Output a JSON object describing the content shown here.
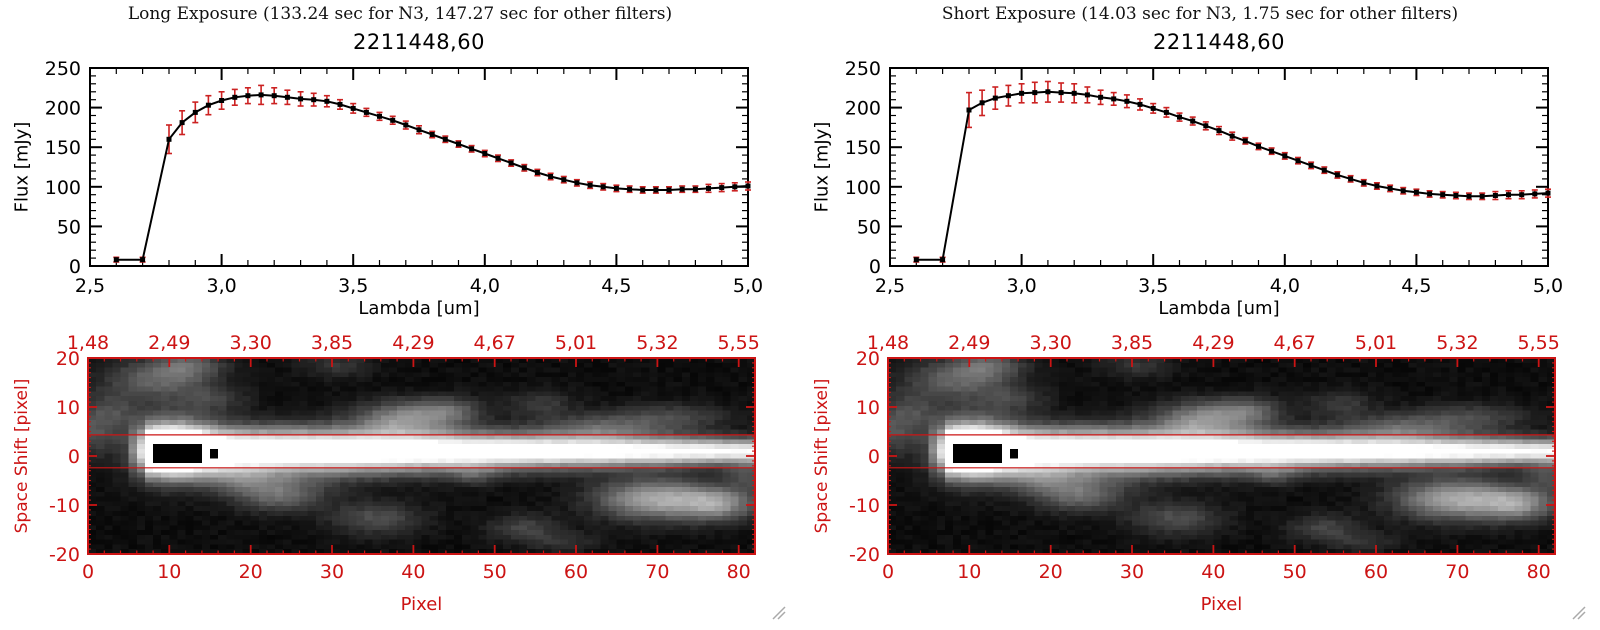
{
  "colors": {
    "axis_red": "#cc1414",
    "error_red": "#cc2222",
    "line_black": "#000000",
    "background": "#ffffff",
    "grip_gray": "#aaaaaa"
  },
  "panels": [
    {
      "title": "Long Exposure (133.24 sec for N3, 147.27 sec for other filters)",
      "spectrum_chart": 0,
      "image_chart": 2
    },
    {
      "title": "Short Exposure (14.03 sec for N3, 1.75 sec for other filters)",
      "spectrum_chart": 1,
      "image_chart": 3
    }
  ],
  "chart_data": [
    {
      "type": "line",
      "panel": "long-exposure",
      "title": "2211448,60",
      "xlabel": "Lambda [um]",
      "ylabel": "Flux [mJy]",
      "xlim": [
        2.5,
        5.0
      ],
      "ylim": [
        0,
        250
      ],
      "x_ticks": [
        2.5,
        3.0,
        3.5,
        4.0,
        4.5,
        5.0
      ],
      "x_tick_labels": [
        "2,5",
        "3,0",
        "3,5",
        "4,0",
        "4,5",
        "5,0"
      ],
      "y_ticks": [
        0,
        50,
        100,
        150,
        200,
        250
      ],
      "y_tick_labels": [
        "0",
        "50",
        "100",
        "150",
        "200",
        "250"
      ],
      "marker": "filled-square",
      "x": [
        2.6,
        2.7,
        2.8,
        2.85,
        2.9,
        2.95,
        3.0,
        3.05,
        3.1,
        3.15,
        3.2,
        3.25,
        3.3,
        3.35,
        3.4,
        3.45,
        3.5,
        3.55,
        3.6,
        3.65,
        3.7,
        3.75,
        3.8,
        3.85,
        3.9,
        3.95,
        4.0,
        4.05,
        4.1,
        4.15,
        4.2,
        4.25,
        4.3,
        4.35,
        4.4,
        4.45,
        4.5,
        4.55,
        4.6,
        4.65,
        4.7,
        4.75,
        4.8,
        4.85,
        4.9,
        4.95,
        5.0
      ],
      "y": [
        8,
        8,
        160,
        181,
        194,
        203,
        209,
        213,
        215,
        216,
        215,
        213,
        211,
        210,
        208,
        204,
        199,
        194,
        189,
        184,
        178,
        172,
        166,
        160,
        154,
        148,
        142,
        136,
        130,
        124,
        118,
        113,
        109,
        105,
        102,
        100,
        98,
        97,
        96,
        96,
        96,
        97,
        97,
        98,
        99,
        100,
        101
      ],
      "yerr": [
        3,
        3,
        18,
        15,
        13,
        12,
        11,
        10,
        10,
        12,
        10,
        9,
        9,
        8,
        7,
        6,
        6,
        5,
        5,
        5,
        5,
        5,
        4,
        4,
        4,
        4,
        4,
        4,
        4,
        4,
        4,
        4,
        4,
        4,
        4,
        4,
        4,
        4,
        4,
        4,
        4,
        4,
        4,
        5,
        5,
        5,
        5
      ]
    },
    {
      "type": "line",
      "panel": "short-exposure",
      "title": "2211448,60",
      "xlabel": "Lambda [um]",
      "ylabel": "Flux [mJy]",
      "xlim": [
        2.5,
        5.0
      ],
      "ylim": [
        0,
        250
      ],
      "x_ticks": [
        2.5,
        3.0,
        3.5,
        4.0,
        4.5,
        5.0
      ],
      "x_tick_labels": [
        "2,5",
        "3,0",
        "3,5",
        "4,0",
        "4,5",
        "5,0"
      ],
      "y_ticks": [
        0,
        50,
        100,
        150,
        200,
        250
      ],
      "y_tick_labels": [
        "0",
        "50",
        "100",
        "150",
        "200",
        "250"
      ],
      "marker": "filled-square",
      "x": [
        2.6,
        2.7,
        2.8,
        2.85,
        2.9,
        2.95,
        3.0,
        3.05,
        3.1,
        3.15,
        3.2,
        3.25,
        3.3,
        3.35,
        3.4,
        3.45,
        3.5,
        3.55,
        3.6,
        3.65,
        3.7,
        3.75,
        3.8,
        3.85,
        3.9,
        3.95,
        4.0,
        4.05,
        4.1,
        4.15,
        4.2,
        4.25,
        4.3,
        4.35,
        4.4,
        4.45,
        4.5,
        4.55,
        4.6,
        4.65,
        4.7,
        4.75,
        4.8,
        4.85,
        4.9,
        4.95,
        5.0
      ],
      "y": [
        8,
        8,
        197,
        206,
        212,
        215,
        218,
        219,
        220,
        219,
        218,
        216,
        213,
        211,
        208,
        204,
        199,
        194,
        188,
        183,
        177,
        171,
        164,
        158,
        151,
        145,
        139,
        133,
        127,
        121,
        115,
        110,
        105,
        101,
        98,
        95,
        93,
        91,
        90,
        89,
        88,
        88,
        89,
        90,
        90,
        91,
        92
      ],
      "yerr": [
        3,
        3,
        22,
        16,
        14,
        13,
        12,
        13,
        13,
        12,
        12,
        10,
        9,
        8,
        8,
        7,
        6,
        6,
        5,
        5,
        5,
        5,
        5,
        4,
        4,
        4,
        4,
        4,
        4,
        4,
        4,
        4,
        4,
        4,
        4,
        4,
        4,
        4,
        4,
        4,
        4,
        4,
        5,
        5,
        5,
        5,
        5
      ]
    },
    {
      "type": "heatmap",
      "panel": "long-exposure",
      "description": "Grayscale 2D dispersed spectral image: bright horizontal spectrum trace at space shift ~+1 px running from pixel ~6 to 82, saturated black core near pixels 8-13, diffuse background sources; thin red lines mark the extraction aperture.",
      "xlabel": "Pixel",
      "ylabel": "Space Shift [pixel]",
      "xlim": [
        0,
        82
      ],
      "ylim": [
        -20,
        20
      ],
      "x_ticks": [
        0,
        10,
        20,
        30,
        40,
        50,
        60,
        70,
        80
      ],
      "x_tick_labels": [
        "0",
        "10",
        "20",
        "30",
        "40",
        "50",
        "60",
        "70",
        "80"
      ],
      "y_ticks": [
        -20,
        -10,
        0,
        10,
        20
      ],
      "y_tick_labels": [
        "-20",
        "-10",
        "0",
        "10",
        "20"
      ],
      "top_axis_labels": [
        "1,48",
        "2,49",
        "3,30",
        "3,85",
        "4,29",
        "4,67",
        "5,01",
        "5,32",
        "5,55"
      ],
      "aperture_lines_space_shift": [
        4.3,
        -2.4
      ],
      "trace": {
        "center": 1.0,
        "sigma_left": 3.2,
        "sigma_right": 1.8,
        "rise_start": 5,
        "full_from": 7,
        "full_to": 24,
        "amp_full": 320,
        "amp_end": 240
      },
      "saturated_black_region": {
        "x0": 8,
        "x1": 13,
        "s0": -1,
        "s1": 2
      },
      "saturated_black_extra": [
        [
          15,
          1
        ],
        [
          15,
          0
        ]
      ],
      "blobs": [
        [
          8,
          16,
          4.5,
          3,
          85
        ],
        [
          12,
          19,
          3,
          2,
          70
        ],
        [
          2,
          9,
          3,
          3,
          60
        ],
        [
          0,
          4,
          2,
          3,
          50
        ],
        [
          15,
          12,
          3,
          2,
          45
        ],
        [
          23,
          -8,
          4,
          2.5,
          95
        ],
        [
          18,
          -5,
          3,
          2,
          55
        ],
        [
          30,
          19,
          3,
          2,
          40
        ],
        [
          38,
          8,
          4,
          2.5,
          110
        ],
        [
          44,
          9.5,
          3,
          2,
          75
        ],
        [
          35,
          -13,
          4,
          2.5,
          65
        ],
        [
          53,
          -15,
          3,
          2,
          55
        ],
        [
          47,
          -4,
          2,
          1.5,
          40
        ],
        [
          55,
          11,
          3,
          2,
          45
        ],
        [
          58,
          -18,
          3,
          1.5,
          35
        ],
        [
          62,
          6,
          5,
          2,
          65
        ],
        [
          71,
          8,
          5,
          2,
          60
        ],
        [
          69,
          -9,
          5,
          3,
          150
        ],
        [
          77,
          -10,
          3.5,
          2.5,
          120
        ],
        [
          81,
          -4,
          2,
          2,
          60
        ],
        [
          10,
          1.5,
          3.5,
          4.5,
          180
        ]
      ],
      "noise_seed": 11,
      "noise_base": 6,
      "noise_amp": 14
    },
    {
      "type": "heatmap",
      "panel": "short-exposure",
      "description": "Identical-looking 2D dispersed spectral image frame for the short exposure.",
      "xlabel": "Pixel",
      "ylabel": "Space Shift [pixel]",
      "same_as": 2
    }
  ]
}
